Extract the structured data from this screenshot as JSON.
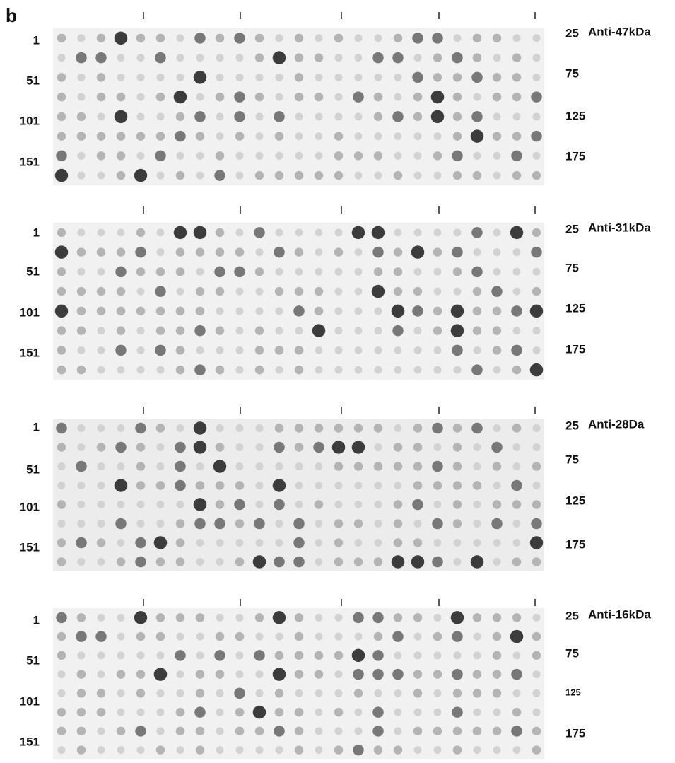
{
  "panel_label": "b",
  "blots": [
    {
      "antibody": "Anti-47kDa",
      "left_labels": [
        "1",
        "51",
        "101",
        "151"
      ],
      "right_labels": [
        "25",
        "75",
        "125",
        "175"
      ]
    },
    {
      "antibody": "Anti-31kDa",
      "left_labels": [
        "1",
        "51",
        "101",
        "151"
      ],
      "right_labels": [
        "25",
        "75",
        "125",
        "175"
      ]
    },
    {
      "antibody": "Anti-28Da",
      "left_labels": [
        "1",
        "51",
        "101",
        "151"
      ],
      "right_labels": [
        "25",
        "75",
        "125",
        "175"
      ]
    },
    {
      "antibody": "Anti-16kDa",
      "left_labels": [
        "1",
        "51",
        "101",
        "151"
      ],
      "right_labels": [
        "25",
        "75",
        "125",
        "175"
      ]
    }
  ]
}
